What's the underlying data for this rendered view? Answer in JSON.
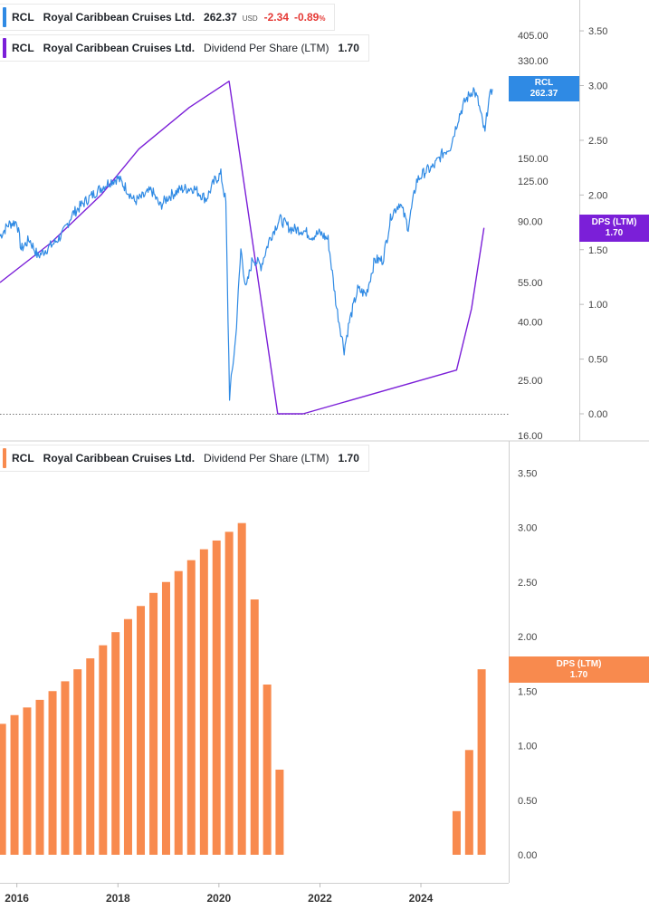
{
  "colors": {
    "price": "#2f8ae4",
    "dps_line": "#7b1fd8",
    "dps_bar": "#f88a4e",
    "negative": "#e53935",
    "axis_text": "#444444",
    "grid": "#e6e6e6"
  },
  "legends": {
    "price": {
      "symbol": "RCL",
      "name": "Royal Caribbean Cruises Ltd.",
      "value": "262.37",
      "unit": "USD",
      "change": "-2.34",
      "change_pct": "-0.89",
      "pct_sign": "%"
    },
    "dps_top": {
      "symbol": "RCL",
      "name": "Royal Caribbean Cruises Ltd.",
      "metric": "Dividend Per Share (LTM)",
      "value": "1.70"
    },
    "dps_bottom": {
      "symbol": "RCL",
      "name": "Royal Caribbean Cruises Ltd.",
      "metric": "Dividend Per Share (LTM)",
      "value": "1.70"
    }
  },
  "tags": {
    "price": {
      "label": "RCL",
      "value": "262.37"
    },
    "dps_top": {
      "label": "DPS (LTM)",
      "value": "1.70"
    },
    "dps_bottom": {
      "label": "DPS (LTM)",
      "value": "1.70"
    }
  },
  "chart_data": [
    {
      "type": "line",
      "title": "",
      "series_name": "RCL",
      "y_scale": "log",
      "y_ticks": [
        "16.00",
        "25.00",
        "40.00",
        "55.00",
        "90.00",
        "125.00",
        "150.00",
        "330.00",
        "405.00"
      ],
      "ylim": [
        16,
        500
      ],
      "x_range": [
        "2015-09-01",
        "2025-06-01"
      ],
      "points": [
        [
          "2015-09-01",
          80
        ],
        [
          "2015-11-01",
          88
        ],
        [
          "2016-01-01",
          90
        ],
        [
          "2016-02-01",
          72
        ],
        [
          "2016-04-01",
          78
        ],
        [
          "2016-06-01",
          68
        ],
        [
          "2016-08-01",
          72
        ],
        [
          "2016-10-01",
          76
        ],
        [
          "2016-12-01",
          82
        ],
        [
          "2017-02-01",
          95
        ],
        [
          "2017-05-01",
          105
        ],
        [
          "2017-08-01",
          115
        ],
        [
          "2017-11-01",
          124
        ],
        [
          "2018-01-01",
          128
        ],
        [
          "2018-03-01",
          118
        ],
        [
          "2018-05-01",
          106
        ],
        [
          "2018-07-01",
          110
        ],
        [
          "2018-09-01",
          116
        ],
        [
          "2018-11-01",
          102
        ],
        [
          "2019-01-01",
          110
        ],
        [
          "2019-04-01",
          117
        ],
        [
          "2019-07-01",
          118
        ],
        [
          "2019-10-01",
          108
        ],
        [
          "2019-12-01",
          125
        ],
        [
          "2020-01-15",
          132
        ],
        [
          "2020-02-20",
          105
        ],
        [
          "2020-03-18",
          22
        ],
        [
          "2020-05-01",
          35
        ],
        [
          "2020-06-08",
          72
        ],
        [
          "2020-07-15",
          52
        ],
        [
          "2020-09-01",
          67
        ],
        [
          "2020-11-01",
          63
        ],
        [
          "2021-01-01",
          78
        ],
        [
          "2021-03-15",
          92
        ],
        [
          "2021-06-01",
          85
        ],
        [
          "2021-09-01",
          84
        ],
        [
          "2021-11-01",
          80
        ],
        [
          "2022-01-01",
          82
        ],
        [
          "2022-03-01",
          78
        ],
        [
          "2022-05-01",
          45
        ],
        [
          "2022-06-25",
          32
        ],
        [
          "2022-08-01",
          40
        ],
        [
          "2022-10-01",
          52
        ],
        [
          "2022-12-01",
          50
        ],
        [
          "2023-02-01",
          66
        ],
        [
          "2023-04-01",
          66
        ],
        [
          "2023-06-01",
          95
        ],
        [
          "2023-08-01",
          105
        ],
        [
          "2023-10-01",
          86
        ],
        [
          "2023-12-01",
          125
        ],
        [
          "2024-02-01",
          135
        ],
        [
          "2024-04-01",
          140
        ],
        [
          "2024-06-01",
          155
        ],
        [
          "2024-08-01",
          165
        ],
        [
          "2024-10-01",
          210
        ],
        [
          "2024-11-15",
          238
        ],
        [
          "2025-01-15",
          262
        ],
        [
          "2025-02-15",
          240
        ],
        [
          "2025-04-08",
          183
        ],
        [
          "2025-05-01",
          235
        ],
        [
          "2025-06-01",
          262.37
        ]
      ]
    },
    {
      "type": "line",
      "title": "",
      "series_name": "DPS (LTM)",
      "y_ticks": [
        "0.00",
        "0.50",
        "1.00",
        "1.50",
        "2.00",
        "2.50",
        "3.00",
        "3.50"
      ],
      "ylim": [
        -0.2,
        3.8
      ],
      "x_range": [
        "2015-09-01",
        "2025-06-01"
      ],
      "points": [
        [
          "2015-09-01",
          1.2
        ],
        [
          "2016-09-01",
          1.56
        ],
        [
          "2017-09-01",
          2.0
        ],
        [
          "2018-06-01",
          2.42
        ],
        [
          "2019-06-01",
          2.8
        ],
        [
          "2020-03-15",
          3.04
        ],
        [
          "2021-03-01",
          0.0
        ],
        [
          "2021-09-01",
          0.0
        ],
        [
          "2024-09-15",
          0.4
        ],
        [
          "2025-01-01",
          0.96
        ],
        [
          "2025-04-01",
          1.7
        ]
      ]
    },
    {
      "type": "bar",
      "title": "",
      "series_name": "Dividend Per Share (LTM)",
      "y_ticks": [
        "0.00",
        "0.50",
        "1.00",
        "1.50",
        "2.00",
        "2.50",
        "3.00",
        "3.50"
      ],
      "ylim": [
        -0.05,
        3.5
      ],
      "x_ticks": [
        "2016",
        "2018",
        "2020",
        "2022",
        "2024"
      ],
      "x_range": [
        "2015-09-01",
        "2025-06-01"
      ],
      "bars": [
        [
          "2015-09-15",
          1.2
        ],
        [
          "2015-12-15",
          1.28
        ],
        [
          "2016-03-15",
          1.35
        ],
        [
          "2016-06-15",
          1.42
        ],
        [
          "2016-09-15",
          1.5
        ],
        [
          "2016-12-15",
          1.59
        ],
        [
          "2017-03-15",
          1.7
        ],
        [
          "2017-06-15",
          1.8
        ],
        [
          "2017-09-15",
          1.92
        ],
        [
          "2017-12-15",
          2.04
        ],
        [
          "2018-03-15",
          2.16
        ],
        [
          "2018-06-15",
          2.28
        ],
        [
          "2018-09-15",
          2.4
        ],
        [
          "2018-12-15",
          2.5
        ],
        [
          "2019-03-15",
          2.6
        ],
        [
          "2019-06-15",
          2.7
        ],
        [
          "2019-09-15",
          2.8
        ],
        [
          "2019-12-15",
          2.88
        ],
        [
          "2020-03-15",
          2.96
        ],
        [
          "2020-06-15",
          3.04
        ],
        [
          "2020-09-15",
          2.34
        ],
        [
          "2020-12-15",
          1.56
        ],
        [
          "2021-03-15",
          0.78
        ],
        [
          "2024-09-15",
          0.4
        ],
        [
          "2024-12-15",
          0.96
        ],
        [
          "2025-03-15",
          1.7
        ]
      ]
    }
  ]
}
